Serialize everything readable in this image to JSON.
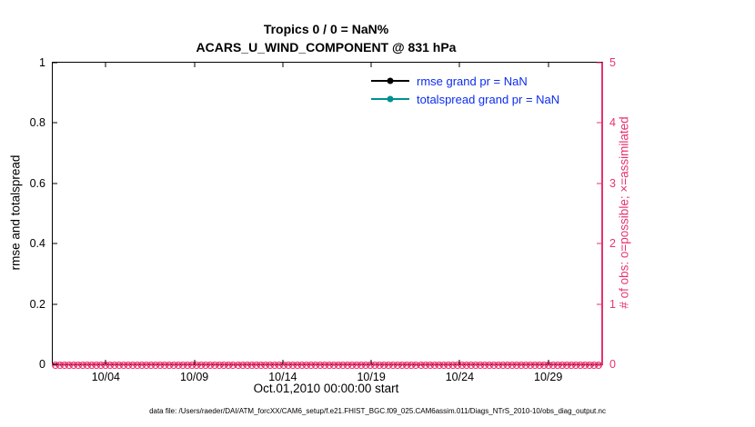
{
  "caption": "data file: /Users/raeder/DAI/ATM_forcXX/CAM6_setup/f.e21.FHIST_BGC.f09_025.CAM6assim.011/Diags_NTrS_2010-10/obs_diag_output.nc",
  "colors": {
    "obs_axis_pink": "#e8336e",
    "rmse_black": "#000000",
    "totalspread_teal": "#009090",
    "legend_text_blue": "#0c2df0",
    "axis_black": "#000000"
  },
  "chart_data": {
    "type": "line",
    "title": "Tropics 0 / 0 = NaN%",
    "subtitle": "ACARS_U_WIND_COMPONENT @ 831 hPa",
    "xlabel": "Oct.01,2010 00:00:00 start",
    "ylabel_left": "rmse and totalspread",
    "ylabel_right": "# of obs: o=possible; ×=assimilated",
    "ylim_left": [
      0,
      1
    ],
    "ylim_right": [
      0,
      5
    ],
    "xlim_days": [
      0,
      31
    ],
    "yticks_left": [
      "0",
      "0.2",
      "0.4",
      "0.6",
      "0.8",
      "1"
    ],
    "yticks_right": [
      "0",
      "1",
      "2",
      "3",
      "4",
      "5"
    ],
    "xticks": [
      {
        "day": 3,
        "label": "10/04"
      },
      {
        "day": 8,
        "label": "10/09"
      },
      {
        "day": 13,
        "label": "10/14"
      },
      {
        "day": 18,
        "label": "10/19"
      },
      {
        "day": 23,
        "label": "10/24"
      },
      {
        "day": 28,
        "label": "10/29"
      }
    ],
    "series": [
      {
        "name": "rmse grand pr = NaN",
        "color": "#000000",
        "values": []
      },
      {
        "name": "totalspread grand pr = NaN",
        "color": "#009090",
        "values": []
      }
    ],
    "obs_series": [
      {
        "name": "possible",
        "marker": "o",
        "right_axis_value": 0
      },
      {
        "name": "assimilated",
        "marker": "×",
        "right_axis_value": 0
      }
    ],
    "obs_marker_count": 120,
    "grid": false,
    "legend_position": "upper-right-inside"
  }
}
